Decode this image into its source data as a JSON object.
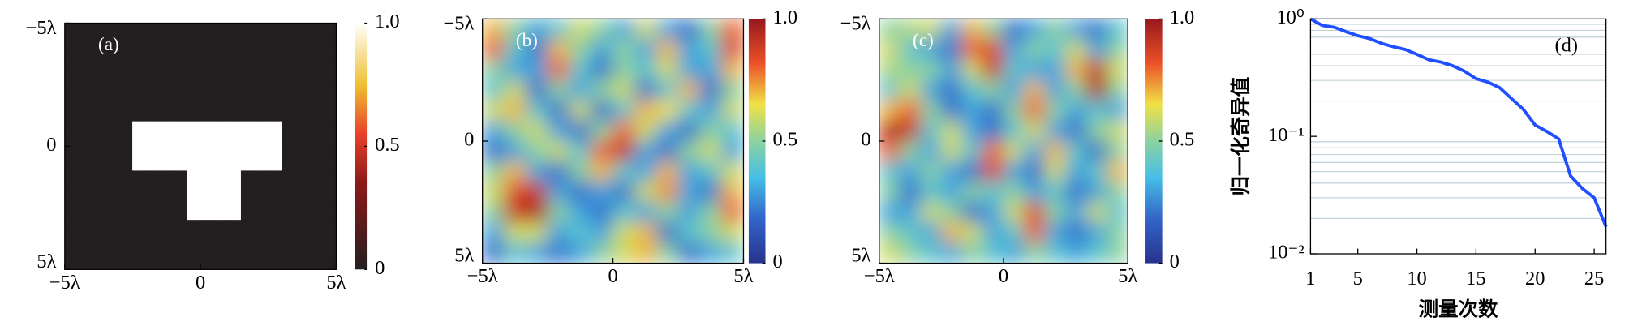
{
  "chart_data": [
    {
      "type": "heatmap",
      "label": "(a)",
      "colormap": "hot",
      "xlim": [
        -5,
        5
      ],
      "ylim": [
        -5,
        5
      ],
      "xticks": [
        {
          "value": -5,
          "label": "−5λ"
        },
        0,
        {
          "value": 5,
          "label": "5λ"
        }
      ],
      "yticks": [
        {
          "value": -5,
          "label": "−5λ"
        },
        0,
        {
          "value": 5,
          "label": "5λ"
        }
      ],
      "clim": [
        0,
        1
      ],
      "cticks": [
        0,
        0.5,
        {
          "value": 1,
          "label": "1.0"
        }
      ],
      "z": [
        [
          0,
          0,
          0,
          0,
          0,
          0,
          0,
          0,
          0,
          0,
          0,
          0,
          0,
          0,
          0,
          0,
          0,
          0,
          0,
          0
        ],
        [
          0,
          0,
          0,
          0,
          0,
          0,
          0,
          0,
          0,
          0,
          0,
          0,
          0,
          0,
          0,
          0,
          0,
          0,
          0,
          0
        ],
        [
          0,
          0,
          0,
          0,
          0,
          0,
          0,
          0,
          0,
          0,
          0,
          0,
          0,
          0,
          0,
          0,
          0,
          0,
          0,
          0
        ],
        [
          0,
          0,
          0,
          0,
          0,
          0,
          0,
          0,
          0,
          0,
          0,
          0,
          0,
          0,
          0,
          0,
          0,
          0,
          0,
          0
        ],
        [
          0,
          0,
          0,
          0,
          0,
          0,
          0,
          0,
          0,
          0,
          0,
          0,
          0,
          0,
          0,
          0,
          0,
          0,
          0,
          0
        ],
        [
          0,
          0,
          0,
          0,
          0,
          0,
          0,
          0,
          0,
          0,
          0,
          0,
          0,
          0,
          0,
          0,
          0,
          0,
          0,
          0
        ],
        [
          0,
          0,
          0,
          0,
          0,
          0,
          0,
          0,
          0,
          0,
          0,
          0,
          0,
          0,
          0,
          0,
          0,
          0,
          0,
          0
        ],
        [
          0,
          0,
          0,
          0,
          0,
          0,
          0,
          0,
          0,
          0,
          0,
          0,
          0,
          0,
          0,
          0,
          0,
          0,
          0,
          0
        ],
        [
          0,
          0,
          0,
          0,
          0,
          1,
          1,
          1,
          1,
          1,
          1,
          1,
          1,
          1,
          1,
          1,
          0,
          0,
          0,
          0
        ],
        [
          0,
          0,
          0,
          0,
          0,
          1,
          1,
          1,
          1,
          1,
          1,
          1,
          1,
          1,
          1,
          1,
          0,
          0,
          0,
          0
        ],
        [
          0,
          0,
          0,
          0,
          0,
          1,
          1,
          1,
          1,
          1,
          1,
          1,
          1,
          1,
          1,
          1,
          0,
          0,
          0,
          0
        ],
        [
          0,
          0,
          0,
          0,
          0,
          1,
          1,
          1,
          1,
          1,
          1,
          1,
          1,
          1,
          1,
          1,
          0,
          0,
          0,
          0
        ],
        [
          0,
          0,
          0,
          0,
          0,
          0,
          0,
          0,
          0,
          1,
          1,
          1,
          1,
          0,
          0,
          0,
          0,
          0,
          0,
          0
        ],
        [
          0,
          0,
          0,
          0,
          0,
          0,
          0,
          0,
          0,
          1,
          1,
          1,
          1,
          0,
          0,
          0,
          0,
          0,
          0,
          0
        ],
        [
          0,
          0,
          0,
          0,
          0,
          0,
          0,
          0,
          0,
          1,
          1,
          1,
          1,
          0,
          0,
          0,
          0,
          0,
          0,
          0
        ],
        [
          0,
          0,
          0,
          0,
          0,
          0,
          0,
          0,
          0,
          1,
          1,
          1,
          1,
          0,
          0,
          0,
          0,
          0,
          0,
          0
        ],
        [
          0,
          0,
          0,
          0,
          0,
          0,
          0,
          0,
          0,
          0,
          0,
          0,
          0,
          0,
          0,
          0,
          0,
          0,
          0,
          0
        ],
        [
          0,
          0,
          0,
          0,
          0,
          0,
          0,
          0,
          0,
          0,
          0,
          0,
          0,
          0,
          0,
          0,
          0,
          0,
          0,
          0
        ],
        [
          0,
          0,
          0,
          0,
          0,
          0,
          0,
          0,
          0,
          0,
          0,
          0,
          0,
          0,
          0,
          0,
          0,
          0,
          0,
          0
        ],
        [
          0,
          0,
          0,
          0,
          0,
          0,
          0,
          0,
          0,
          0,
          0,
          0,
          0,
          0,
          0,
          0,
          0,
          0,
          0,
          0
        ]
      ]
    },
    {
      "type": "heatmap",
      "label": "(b)",
      "colormap": "jet",
      "smooth": true,
      "xlim": [
        -5,
        5
      ],
      "ylim": [
        -5,
        5
      ],
      "xticks": [
        {
          "value": -5,
          "label": "−5λ"
        },
        0,
        {
          "value": 5,
          "label": "5λ"
        }
      ],
      "yticks": [
        {
          "value": -5,
          "label": "−5λ"
        },
        0,
        {
          "value": 5,
          "label": "5λ"
        }
      ],
      "clim": [
        0,
        1
      ],
      "cticks": [
        0,
        0.5,
        {
          "value": 1,
          "label": "1.0"
        }
      ],
      "z": [
        [
          0.7,
          0.5,
          0.3,
          0.4,
          0.6,
          0.5,
          0.3,
          0.6,
          0.3,
          0.2,
          0.5,
          0.8
        ],
        [
          0.8,
          0.4,
          0.2,
          0.7,
          0.5,
          0.3,
          0.5,
          0.3,
          0.7,
          0.3,
          0.4,
          0.85
        ],
        [
          0.5,
          0.3,
          0.3,
          0.8,
          0.4,
          0.2,
          0.5,
          0.4,
          0.6,
          0.3,
          0.3,
          0.7
        ],
        [
          0.4,
          0.6,
          0.2,
          0.5,
          0.3,
          0.5,
          0.6,
          0.2,
          0.4,
          0.7,
          0.2,
          0.5
        ],
        [
          0.6,
          0.7,
          0.4,
          0.2,
          0.6,
          0.2,
          0.4,
          0.7,
          0.65,
          0.4,
          0.3,
          0.6
        ],
        [
          0.3,
          0.5,
          0.6,
          0.3,
          0.2,
          0.5,
          0.8,
          0.6,
          0.3,
          0.2,
          0.5,
          0.4
        ],
        [
          0.2,
          0.3,
          0.5,
          0.6,
          0.4,
          0.8,
          0.9,
          0.3,
          0.2,
          0.5,
          0.6,
          0.3
        ],
        [
          0.5,
          0.7,
          0.3,
          0.2,
          0.5,
          0.7,
          0.4,
          0.3,
          0.7,
          0.3,
          0.4,
          0.6
        ],
        [
          0.6,
          0.85,
          0.9,
          0.3,
          0.2,
          0.3,
          0.2,
          0.6,
          0.75,
          0.3,
          0.2,
          0.7
        ],
        [
          0.5,
          0.9,
          0.95,
          0.5,
          0.3,
          0.2,
          0.4,
          0.3,
          0.5,
          0.3,
          0.5,
          0.8
        ],
        [
          0.3,
          0.6,
          0.6,
          0.3,
          0.4,
          0.3,
          0.6,
          0.7,
          0.2,
          0.4,
          0.5,
          0.6
        ],
        [
          0.2,
          0.4,
          0.3,
          0.2,
          0.3,
          0.5,
          0.6,
          0.7,
          0.5,
          0.2,
          0.3,
          0.4
        ]
      ]
    },
    {
      "type": "heatmap",
      "label": "(c)",
      "colormap": "jet",
      "smooth": true,
      "xlim": [
        -5,
        5
      ],
      "ylim": [
        -5,
        5
      ],
      "xticks": [
        {
          "value": -5,
          "label": "−5λ"
        },
        0,
        {
          "value": 5,
          "label": "5λ"
        }
      ],
      "yticks": [
        {
          "value": -5,
          "label": "−5λ"
        },
        0,
        {
          "value": 5,
          "label": "5λ"
        }
      ],
      "clim": [
        0,
        1
      ],
      "cticks": [
        0,
        0.5,
        {
          "value": 1,
          "label": "1.0"
        }
      ],
      "z": [
        [
          0.5,
          0.55,
          0.6,
          0.3,
          0.7,
          0.5,
          0.2,
          0.3,
          0.5,
          0.3,
          0.2,
          0.4
        ],
        [
          0.6,
          0.4,
          0.3,
          0.2,
          0.8,
          0.85,
          0.3,
          0.5,
          0.4,
          0.6,
          0.3,
          0.5
        ],
        [
          0.55,
          0.5,
          0.5,
          0.3,
          0.6,
          0.9,
          0.4,
          0.3,
          0.3,
          0.7,
          0.9,
          0.6
        ],
        [
          0.4,
          0.6,
          0.3,
          0.2,
          0.4,
          0.5,
          0.3,
          0.7,
          0.3,
          0.5,
          0.95,
          0.5
        ],
        [
          0.7,
          0.8,
          0.5,
          0.2,
          0.3,
          0.2,
          0.5,
          0.8,
          0.5,
          0.3,
          0.4,
          0.3
        ],
        [
          0.95,
          0.9,
          0.4,
          0.6,
          0.3,
          0.2,
          0.4,
          0.6,
          0.3,
          0.2,
          0.5,
          0.6
        ],
        [
          0.8,
          0.5,
          0.3,
          0.6,
          0.4,
          0.8,
          0.6,
          0.3,
          0.7,
          0.4,
          0.2,
          0.5
        ],
        [
          0.4,
          0.3,
          0.5,
          0.3,
          0.2,
          0.85,
          0.3,
          0.2,
          0.6,
          0.3,
          0.4,
          0.7
        ],
        [
          0.5,
          0.2,
          0.4,
          0.3,
          0.5,
          0.4,
          0.5,
          0.3,
          0.4,
          0.2,
          0.3,
          0.5
        ],
        [
          0.3,
          0.3,
          0.6,
          0.5,
          0.2,
          0.3,
          0.6,
          0.85,
          0.5,
          0.3,
          0.6,
          0.4
        ],
        [
          0.5,
          0.4,
          0.3,
          0.7,
          0.6,
          0.3,
          0.4,
          0.8,
          0.3,
          0.2,
          0.3,
          0.5
        ],
        [
          0.6,
          0.5,
          0.4,
          0.3,
          0.5,
          0.4,
          0.3,
          0.5,
          0.4,
          0.3,
          0.4,
          0.5
        ]
      ]
    },
    {
      "type": "line",
      "label": "(d)",
      "xlabel": "测量次数",
      "ylabel": "归一化奇异值",
      "color": "#1f4fff",
      "yscale": "log",
      "grid": true,
      "x": [
        1,
        2,
        3,
        4,
        5,
        6,
        7,
        8,
        9,
        10,
        11,
        12,
        13,
        14,
        15,
        16,
        17,
        18,
        19,
        20,
        21,
        22,
        23,
        24,
        25,
        26
      ],
      "values": [
        1.0,
        0.88,
        0.85,
        0.78,
        0.72,
        0.68,
        0.62,
        0.58,
        0.55,
        0.5,
        0.45,
        0.43,
        0.4,
        0.36,
        0.31,
        0.29,
        0.26,
        0.21,
        0.17,
        0.125,
        0.11,
        0.095,
        0.046,
        0.036,
        0.03,
        0.017
      ],
      "xlim": [
        1,
        26
      ],
      "ylim": [
        0.01,
        1
      ],
      "xticks": [
        1,
        5,
        10,
        15,
        20,
        25
      ],
      "yticks": [
        {
          "value": 0.01,
          "label": "10⁻²"
        },
        {
          "value": 0.1,
          "label": "10⁻¹"
        },
        {
          "value": 1,
          "label": "10⁰"
        }
      ],
      "minor_yticks": [
        0.02,
        0.03,
        0.04,
        0.05,
        0.06,
        0.07,
        0.08,
        0.09,
        0.2,
        0.3,
        0.4,
        0.5,
        0.6,
        0.7,
        0.8,
        0.9
      ]
    }
  ]
}
